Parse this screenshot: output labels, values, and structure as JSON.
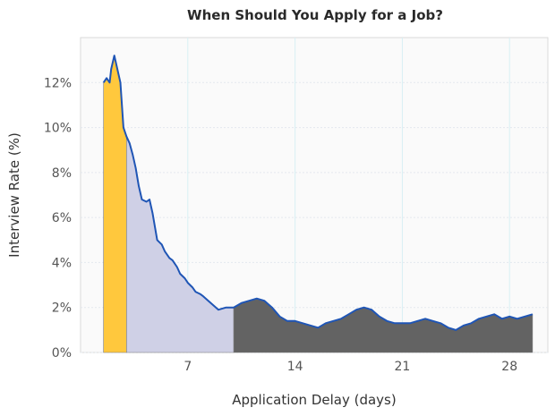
{
  "chart_data": {
    "type": "area",
    "title": "When Should You Apply for a Job?",
    "xlabel": "Application Delay (days)",
    "ylabel": "Interview Rate (%)",
    "xlim": [
      0,
      30.5
    ],
    "ylim": [
      0,
      14
    ],
    "x_ticks": [
      7,
      14,
      21,
      28
    ],
    "y_ticks": [
      0,
      2,
      4,
      6,
      8,
      10,
      12
    ],
    "y_tick_labels": [
      "0%",
      "2%",
      "4%",
      "6%",
      "8%",
      "10%",
      "12%"
    ],
    "grid": true,
    "x": [
      1.5,
      1.7,
      1.9,
      2.0,
      2.2,
      2.4,
      2.6,
      2.8,
      3.0,
      3.2,
      3.4,
      3.6,
      3.8,
      4.0,
      4.3,
      4.5,
      4.7,
      5.0,
      5.3,
      5.5,
      5.8,
      6.0,
      6.3,
      6.5,
      6.8,
      7.0,
      7.3,
      7.5,
      7.8,
      8.0,
      8.5,
      9.0,
      9.5,
      10.0,
      10.5,
      11.0,
      11.5,
      12.0,
      12.5,
      13.0,
      13.5,
      14.0,
      14.5,
      15.0,
      15.5,
      16.0,
      16.5,
      17.0,
      17.5,
      18.0,
      18.5,
      19.0,
      19.5,
      20.0,
      20.5,
      21.0,
      21.5,
      22.0,
      22.5,
      23.0,
      23.5,
      24.0,
      24.5,
      25.0,
      25.5,
      26.0,
      26.5,
      27.0,
      27.5,
      28.0,
      28.5,
      29.0,
      29.5
    ],
    "y": [
      12.0,
      12.2,
      12.0,
      12.6,
      13.2,
      12.6,
      12.0,
      10.0,
      9.6,
      9.3,
      8.8,
      8.2,
      7.4,
      6.8,
      6.7,
      6.8,
      6.2,
      5.0,
      4.8,
      4.5,
      4.2,
      4.1,
      3.8,
      3.5,
      3.3,
      3.1,
      2.9,
      2.7,
      2.6,
      2.5,
      2.2,
      1.9,
      2.0,
      2.0,
      2.2,
      2.3,
      2.4,
      2.3,
      2.0,
      1.6,
      1.4,
      1.4,
      1.3,
      1.2,
      1.1,
      1.3,
      1.4,
      1.5,
      1.7,
      1.9,
      2.0,
      1.9,
      1.6,
      1.4,
      1.3,
      1.3,
      1.3,
      1.4,
      1.5,
      1.4,
      1.3,
      1.1,
      1.0,
      1.2,
      1.3,
      1.5,
      1.6,
      1.7,
      1.5,
      1.6,
      1.5,
      1.6,
      1.7
    ],
    "segments": [
      {
        "from": 1.5,
        "to": 3.0,
        "fill": "#ffc83d"
      },
      {
        "from": 3.0,
        "to": 10.0,
        "fill": "#cfd0e6"
      },
      {
        "from": 10.0,
        "to": 29.5,
        "fill": "#636363"
      }
    ],
    "line_color": "#1f55b5"
  }
}
